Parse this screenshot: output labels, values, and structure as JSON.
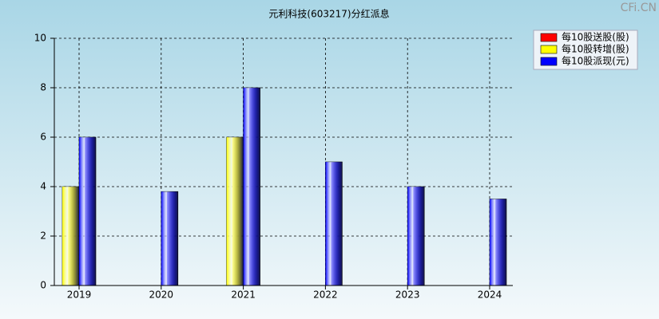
{
  "chart_data": {
    "type": "bar",
    "title": "元利科技(603217)分红派息",
    "watermark": "CFi.CN",
    "categories": [
      "2019",
      "2020",
      "2021",
      "2022",
      "2023",
      "2024"
    ],
    "series": [
      {
        "name": "每10股送股(股)",
        "color": "#ff0000",
        "values": [
          null,
          null,
          null,
          null,
          null,
          null
        ]
      },
      {
        "name": "每10股转增(股)",
        "color": "#ffff00",
        "values": [
          4,
          null,
          6,
          null,
          null,
          null
        ]
      },
      {
        "name": "每10股派现(元)",
        "color": "#0000ff",
        "values": [
          6,
          3.8,
          8,
          5,
          4,
          3.5
        ]
      }
    ],
    "ylim": [
      0,
      10
    ],
    "yticks": [
      0,
      2,
      4,
      6,
      8,
      10
    ],
    "grid": true,
    "legend": "top-right"
  }
}
